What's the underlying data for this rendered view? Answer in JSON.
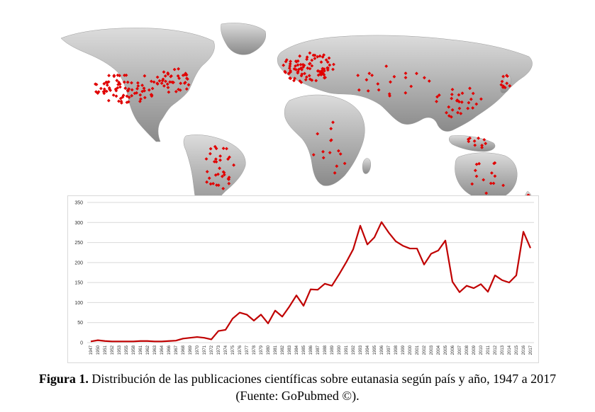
{
  "caption": {
    "label": "Figura 1.",
    "text": "Distribución de las publicaciones científicas sobre eutanasia según país y año, 1947 a 2017",
    "source": "(Fuente: GoPubmed ©)."
  },
  "map": {
    "land_color": "#a9a9a9",
    "marker_color": "#e00000"
  },
  "chart_data": {
    "type": "line",
    "title": "",
    "xlabel": "",
    "ylabel": "",
    "ylim": [
      0,
      350
    ],
    "yticks": [
      0,
      50,
      100,
      150,
      200,
      250,
      300,
      350
    ],
    "grid": true,
    "legend": "none",
    "series_color": "#c00000",
    "x": [
      "1947",
      "1950",
      "1951",
      "1952",
      "1953",
      "1955",
      "1958",
      "1961",
      "1962",
      "1963",
      "1964",
      "1966",
      "1967",
      "1968",
      "1969",
      "1970",
      "1971",
      "1972",
      "1973",
      "1974",
      "1975",
      "1976",
      "1977",
      "1978",
      "1979",
      "1980",
      "1981",
      "1982",
      "1983",
      "1984",
      "1985",
      "1986",
      "1987",
      "1988",
      "1989",
      "1990",
      "1991",
      "1992",
      "1993",
      "1994",
      "1995",
      "1996",
      "1997",
      "1998",
      "1999",
      "2000",
      "2001",
      "2002",
      "2003",
      "2004",
      "2005",
      "2006",
      "2007",
      "2008",
      "2009",
      "2010",
      "2011",
      "2012",
      "2013",
      "2014",
      "2015",
      "2016",
      "2017"
    ],
    "series": [
      {
        "values": [
          3,
          6,
          4,
          3,
          3,
          3,
          3,
          4,
          4,
          3,
          3,
          4,
          5,
          10,
          12,
          14,
          12,
          8,
          29,
          32,
          60,
          75,
          70,
          55,
          70,
          48,
          80,
          65,
          90,
          118,
          92,
          133,
          132,
          147,
          142,
          170,
          200,
          233,
          292,
          245,
          263,
          301,
          275,
          253,
          242,
          235,
          235,
          195,
          222,
          230,
          255,
          152,
          126,
          142,
          136,
          146,
          127,
          168,
          156,
          150,
          168,
          277,
          236
        ]
      }
    ]
  }
}
